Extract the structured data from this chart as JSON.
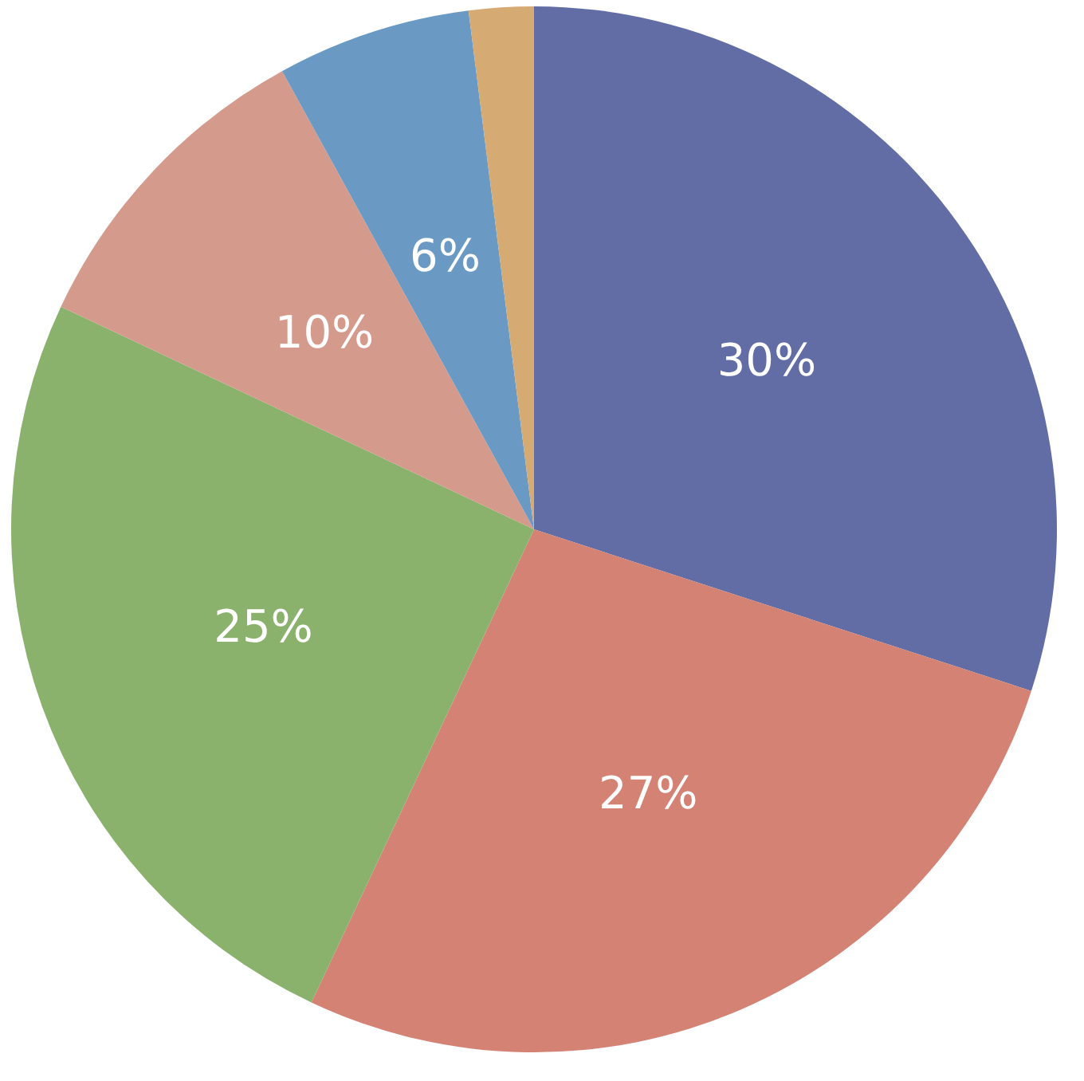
{
  "chart_data": {
    "type": "pie",
    "categories": [
      null,
      null,
      null,
      null,
      null,
      null
    ],
    "values": [
      30,
      27,
      25,
      10,
      6,
      2
    ],
    "colors": [
      "#626ca5",
      "#d38274",
      "#8ab26c",
      "#d49a8c",
      "#6a9ac4",
      "#d6aa73"
    ],
    "value_labels": [
      "30%",
      "27%",
      "25%",
      "10%",
      "6%",
      null
    ]
  }
}
